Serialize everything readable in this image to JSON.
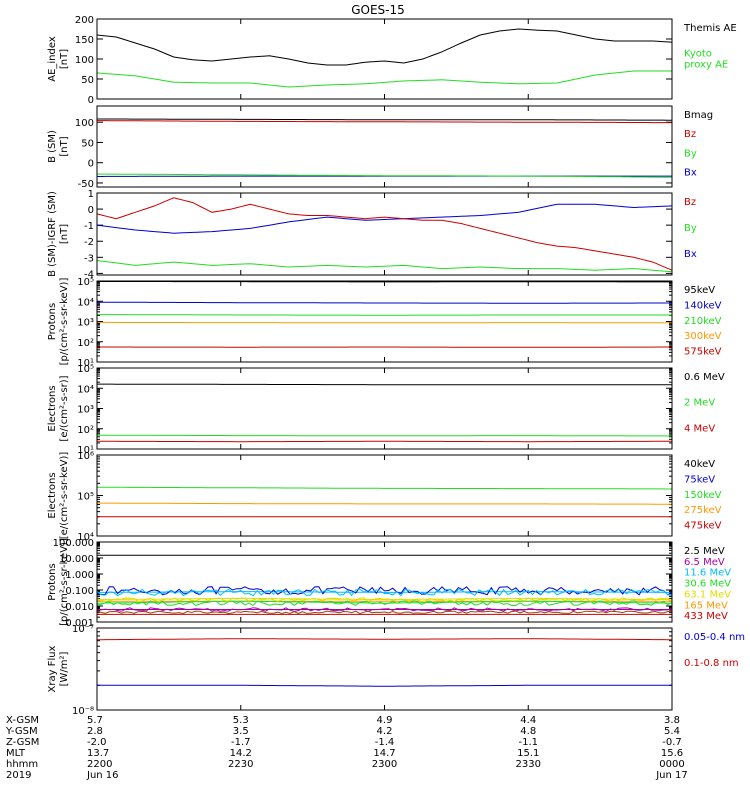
{
  "title": "GOES-15",
  "colors": {
    "black": "#000000",
    "green": "#22dd22",
    "red": "#cc0000",
    "blue": "#0000cc",
    "orange": "#ff9900",
    "yellow": "#dddd00",
    "cyan": "#00bbff",
    "magenta": "#aa00aa",
    "brown": "#994400"
  },
  "chart_data": [
    {
      "type": "line",
      "ylabel_lines": [
        "AE_index",
        "[nT]"
      ],
      "scale": "linear",
      "ylim": [
        0,
        200
      ],
      "ticks": [
        0,
        50,
        100,
        150,
        200
      ],
      "tick_labels": [
        "0",
        "50",
        "100",
        "150",
        "200"
      ],
      "series": [
        {
          "name": "Kyoto proxy AE",
          "legend": [
            "Kyoto",
            "proxy AE"
          ],
          "color": "green",
          "x": [
            0,
            4,
            8,
            12,
            16,
            20,
            24,
            28,
            32,
            36,
            40,
            44,
            48,
            52,
            56,
            60
          ],
          "y": [
            65,
            58,
            42,
            40,
            40,
            30,
            35,
            38,
            45,
            48,
            42,
            38,
            40,
            60,
            70,
            70
          ]
        },
        {
          "name": "Themis AE",
          "legend": [
            "Themis AE"
          ],
          "color": "black",
          "x": [
            0,
            2,
            4,
            6,
            8,
            10,
            12,
            14,
            16,
            18,
            20,
            22,
            24,
            26,
            28,
            30,
            32,
            34,
            36,
            38,
            40,
            42,
            44,
            46,
            48,
            50,
            52,
            54,
            56,
            58,
            60
          ],
          "y": [
            160,
            155,
            140,
            125,
            105,
            98,
            95,
            100,
            105,
            108,
            100,
            90,
            85,
            85,
            92,
            95,
            90,
            100,
            118,
            140,
            160,
            170,
            175,
            172,
            170,
            160,
            150,
            145,
            145,
            145,
            142
          ]
        }
      ]
    },
    {
      "type": "line",
      "ylabel_lines": [
        "B (SM)",
        "[nT]"
      ],
      "scale": "linear",
      "ylim": [
        -60,
        140
      ],
      "ticks": [
        -50,
        0,
        50,
        100
      ],
      "tick_labels": [
        "-50",
        "0",
        "50",
        "100"
      ],
      "series": [
        {
          "name": "Bx",
          "legend": [
            "Bx"
          ],
          "color": "blue",
          "x": [
            0,
            15,
            30,
            45,
            60
          ],
          "y": [
            -34,
            -33,
            -33,
            -33,
            -33
          ]
        },
        {
          "name": "By",
          "legend": [
            "By"
          ],
          "color": "green",
          "x": [
            0,
            15,
            30,
            45,
            60
          ],
          "y": [
            -28,
            -30,
            -32,
            -33,
            -36
          ]
        },
        {
          "name": "Bz",
          "legend": [
            "Bz"
          ],
          "color": "red",
          "x": [
            0,
            15,
            30,
            45,
            60
          ],
          "y": [
            104,
            102,
            101,
            100,
            99
          ]
        },
        {
          "name": "Bmag",
          "legend": [
            "Bmag"
          ],
          "color": "black",
          "x": [
            0,
            15,
            30,
            45,
            60
          ],
          "y": [
            108,
            107,
            106,
            106,
            105
          ]
        }
      ]
    },
    {
      "type": "line",
      "ylabel_lines": [
        "B (SM)-IGRF (SM)",
        "[nT]"
      ],
      "scale": "linear",
      "ylim": [
        -4.1,
        1.0
      ],
      "ticks": [
        -4,
        -3,
        -2,
        -1,
        0,
        1
      ],
      "tick_labels": [
        "-4",
        "-3",
        "-2",
        "-1",
        "0",
        "1"
      ],
      "series": [
        {
          "name": "Bx",
          "legend": [
            "Bx"
          ],
          "color": "blue",
          "x": [
            0,
            4,
            8,
            12,
            16,
            20,
            24,
            28,
            32,
            36,
            40,
            44,
            48,
            52,
            56,
            60
          ],
          "y": [
            -1.0,
            -1.3,
            -1.5,
            -1.4,
            -1.2,
            -0.8,
            -0.5,
            -0.7,
            -0.6,
            -0.5,
            -0.4,
            -0.2,
            0.3,
            0.3,
            0.1,
            0.2
          ]
        },
        {
          "name": "By",
          "legend": [
            "By"
          ],
          "color": "green",
          "x": [
            0,
            4,
            8,
            12,
            16,
            20,
            24,
            28,
            32,
            36,
            40,
            44,
            48,
            52,
            56,
            60
          ],
          "y": [
            -3.2,
            -3.5,
            -3.3,
            -3.5,
            -3.4,
            -3.6,
            -3.5,
            -3.6,
            -3.5,
            -3.7,
            -3.6,
            -3.7,
            -3.7,
            -3.8,
            -3.7,
            -3.9
          ]
        },
        {
          "name": "Bz",
          "legend": [
            "Bz"
          ],
          "color": "red",
          "x": [
            0,
            2,
            4,
            6,
            8,
            10,
            12,
            14,
            16,
            18,
            20,
            22,
            24,
            26,
            28,
            30,
            32,
            34,
            36,
            38,
            40,
            42,
            44,
            46,
            48,
            50,
            52,
            54,
            56,
            58,
            60
          ],
          "y": [
            -0.3,
            -0.6,
            -0.2,
            0.2,
            0.7,
            0.4,
            -0.2,
            0.0,
            0.3,
            0.0,
            -0.3,
            -0.4,
            -0.4,
            -0.5,
            -0.6,
            -0.5,
            -0.6,
            -0.7,
            -0.7,
            -0.9,
            -1.2,
            -1.5,
            -1.8,
            -2.1,
            -2.3,
            -2.4,
            -2.6,
            -2.8,
            -3.0,
            -3.3,
            -3.8
          ]
        }
      ]
    },
    {
      "type": "line",
      "ylabel_lines": [
        "Protons",
        "[p/(cm²-s-sr-keV)]"
      ],
      "scale": "log",
      "ylim": [
        10,
        100000
      ],
      "ticks": [
        10,
        100,
        1000,
        10000,
        100000
      ],
      "tick_labels": [
        "10¹",
        "10²",
        "10³",
        "10⁴",
        "10⁵"
      ],
      "series": [
        {
          "name": "575keV",
          "legend": [
            "575keV"
          ],
          "color": "red",
          "x": [
            0,
            15,
            30,
            45,
            60
          ],
          "y": [
            55,
            54,
            55,
            53,
            55
          ]
        },
        {
          "name": "300keV",
          "legend": [
            "300keV"
          ],
          "color": "orange",
          "x": [
            0,
            15,
            30,
            45,
            60
          ],
          "y": [
            900,
            880,
            870,
            880,
            870
          ]
        },
        {
          "name": "210keV",
          "legend": [
            "210keV"
          ],
          "color": "green",
          "x": [
            0,
            15,
            30,
            45,
            60
          ],
          "y": [
            2200,
            2100,
            2050,
            2100,
            2100
          ]
        },
        {
          "name": "140keV",
          "legend": [
            "140keV"
          ],
          "color": "blue",
          "x": [
            0,
            15,
            30,
            45,
            60
          ],
          "y": [
            9000,
            8500,
            8200,
            8000,
            8200
          ]
        },
        {
          "name": "95keV",
          "legend": [
            "95keV"
          ],
          "color": "black",
          "x": [
            0,
            15,
            30,
            45,
            60
          ],
          "y": [
            95000,
            93000,
            90000,
            92000,
            90000
          ]
        }
      ]
    },
    {
      "type": "line",
      "ylabel_lines": [
        "Electrons",
        "[e/(cm²-s-sr)]"
      ],
      "scale": "log",
      "ylim": [
        10,
        100000
      ],
      "ticks": [
        10,
        100,
        1000,
        10000,
        100000
      ],
      "tick_labels": [
        "10¹",
        "10²",
        "10³",
        "10⁴",
        "10⁵"
      ],
      "series": [
        {
          "name": "4 MeV",
          "legend": [
            "4 MeV"
          ],
          "color": "red",
          "x": [
            0,
            15,
            30,
            45,
            60
          ],
          "y": [
            24,
            23,
            24,
            23,
            24
          ]
        },
        {
          "name": "2 MeV",
          "legend": [
            "2 MeV"
          ],
          "color": "green",
          "x": [
            0,
            15,
            30,
            45,
            60
          ],
          "y": [
            48,
            46,
            45,
            46,
            44
          ]
        },
        {
          "name": "0.6 MeV",
          "legend": [
            "0.6 MeV"
          ],
          "color": "black",
          "x": [
            0,
            15,
            30,
            45,
            60
          ],
          "y": [
            16000,
            15500,
            15000,
            15000,
            14800
          ]
        }
      ]
    },
    {
      "type": "line",
      "ylabel_lines": [
        "Electrons",
        "[e/(cm²-s-sr-keV)]"
      ],
      "scale": "log",
      "ylim": [
        10000,
        1000000
      ],
      "ticks": [
        10000,
        100000,
        1000000
      ],
      "tick_labels": [
        "10⁴",
        "10⁵",
        "10⁶"
      ],
      "series": [
        {
          "name": "475keV",
          "legend": [
            "475keV"
          ],
          "color": "red",
          "x": [
            0,
            15,
            30,
            45,
            60
          ],
          "y": [
            30000,
            30000,
            30000,
            30000,
            30000
          ]
        },
        {
          "name": "275keV",
          "legend": [
            "275keV"
          ],
          "color": "orange",
          "x": [
            0,
            15,
            30,
            45,
            60
          ],
          "y": [
            65000,
            63000,
            62000,
            62000,
            61000
          ]
        },
        {
          "name": "150keV",
          "legend": [
            "150keV"
          ],
          "color": "green",
          "x": [
            0,
            15,
            30,
            45,
            60
          ],
          "y": [
            160000,
            155000,
            150000,
            148000,
            145000
          ]
        },
        {
          "name": "75keV",
          "legend": [
            "75keV"
          ],
          "color": "blue",
          "x": [
            0,
            15,
            30,
            45,
            60
          ],
          "y": [
            1080000,
            1070000,
            1060000,
            1050000,
            1050000
          ]
        },
        {
          "name": "40keV",
          "legend": [
            "40keV"
          ],
          "color": "black",
          "x": [
            0,
            15,
            30,
            45,
            60
          ],
          "y": [
            1100000,
            1100000,
            1100000,
            1100000,
            1100000
          ]
        }
      ]
    },
    {
      "type": "line",
      "ylabel_lines": [
        "Protons",
        "[p/(cm²-s-sr-keV)]"
      ],
      "scale": "log",
      "ylim": [
        0.001,
        100
      ],
      "ticks": [
        0.001,
        0.01,
        0.1,
        1,
        10,
        100
      ],
      "tick_labels": [
        "0.001",
        "0.010",
        "0.100",
        "1.000",
        "10.000",
        "100.000"
      ],
      "series": [
        {
          "name": "433 MeV",
          "legend": [
            "433 MeV"
          ],
          "color": "red",
          "x": [
            0,
            15,
            30,
            45,
            60
          ],
          "y": [
            0.003,
            0.003,
            0.003,
            0.003,
            0.003
          ]
        },
        {
          "name": "165 MeV",
          "legend": [
            "165 MeV"
          ],
          "color": "orange",
          "x": [
            0,
            15,
            30,
            45,
            60
          ],
          "y": [
            0.02,
            0.02,
            0.02,
            0.02,
            0.02
          ]
        },
        {
          "name": "63.1 MeV",
          "legend": [
            "63.1 MeV"
          ],
          "color": "yellow",
          "x": [
            0,
            15,
            30,
            45,
            60
          ],
          "y": [
            0.025,
            0.03,
            0.025,
            0.03,
            0.025
          ]
        },
        {
          "name": "30.6 MeV",
          "legend": [
            "30.6 MeV"
          ],
          "color": "green",
          "x": [
            0,
            15,
            30,
            45,
            60
          ],
          "y": [
            0.015,
            0.02,
            0.015,
            0.02,
            0.015
          ]
        },
        {
          "name": "11.6 MeV",
          "legend": [
            "11.6 MeV"
          ],
          "color": "cyan",
          "x": [
            0,
            15,
            30,
            45,
            60
          ],
          "y": [
            0.07,
            0.08,
            0.07,
            0.08,
            0.07
          ]
        },
        {
          "name": "6.5 MeV",
          "legend": [
            "6.5 MeV"
          ],
          "color": "magenta",
          "x": [
            0,
            15,
            30,
            45,
            60
          ],
          "y": [
            0.006,
            0.006,
            0.006,
            0.006,
            0.006
          ]
        },
        {
          "name": "2.5 MeV",
          "legend": [
            "2.5 MeV"
          ],
          "color": "black",
          "x": [
            0,
            15,
            30,
            45,
            60
          ],
          "y": [
            15,
            15,
            15,
            15,
            15
          ]
        }
      ],
      "noisy_series": [
        {
          "name": "blue-noisy",
          "color": "blue",
          "base": 0.09,
          "amp": 1.8
        },
        {
          "name": "cyan-noisy",
          "color": "cyan",
          "base": 0.07,
          "amp": 1.6
        },
        {
          "name": "green-noisy",
          "color": "green",
          "base": 0.015,
          "amp": 1.4
        },
        {
          "name": "yellow-noisy",
          "color": "yellow",
          "base": 0.025,
          "amp": 1.3
        },
        {
          "name": "magenta-noisy",
          "color": "magenta",
          "base": 0.006,
          "amp": 1.3
        },
        {
          "name": "brown-noisy",
          "color": "brown",
          "base": 0.004,
          "amp": 1.2
        }
      ]
    },
    {
      "type": "line",
      "ylabel_lines": [
        "Xray Flux",
        "[W/m²]"
      ],
      "scale": "log",
      "ylim": [
        1e-08,
        1e-07
      ],
      "ticks": [
        1e-08,
        1e-07
      ],
      "tick_labels": [
        "10⁻⁸",
        "10⁻⁷"
      ],
      "series": [
        {
          "name": "0.1-0.8 nm",
          "legend": [
            "0.1-0.8 nm"
          ],
          "color": "red",
          "x": [
            0,
            15,
            30,
            45,
            60
          ],
          "y": [
            7.2e-08,
            7.4e-08,
            7.3e-08,
            7.4e-08,
            7.2e-08
          ]
        },
        {
          "name": "0.05-0.4 nm",
          "legend": [
            "0.05-0.4 nm"
          ],
          "color": "blue",
          "x": [
            0,
            15,
            30,
            45,
            60
          ],
          "y": [
            2e-08,
            2e-08,
            1.95e-08,
            2e-08,
            2e-08
          ]
        }
      ]
    }
  ],
  "x_axis": {
    "range": [
      0,
      60
    ],
    "row_labels": [
      "X-GSM",
      "Y-GSM",
      "Z-GSM",
      "MLT",
      "hhmm",
      "2019"
    ],
    "columns": [
      {
        "x": 0,
        "values": [
          "5.7",
          "2.8",
          "-2.0",
          "13.7",
          "2200",
          "Jun 16"
        ]
      },
      {
        "x": 15,
        "values": [
          "5.3",
          "3.5",
          "-1.7",
          "14.2",
          "2230",
          ""
        ]
      },
      {
        "x": 30,
        "values": [
          "4.9",
          "4.2",
          "-1.4",
          "14.7",
          "2300",
          ""
        ]
      },
      {
        "x": 45,
        "values": [
          "4.4",
          "4.8",
          "-1.1",
          "15.1",
          "2330",
          ""
        ]
      },
      {
        "x": 60,
        "values": [
          "3.8",
          "5.4",
          "-0.7",
          "15.6",
          "0000",
          "Jun 17"
        ]
      }
    ]
  }
}
